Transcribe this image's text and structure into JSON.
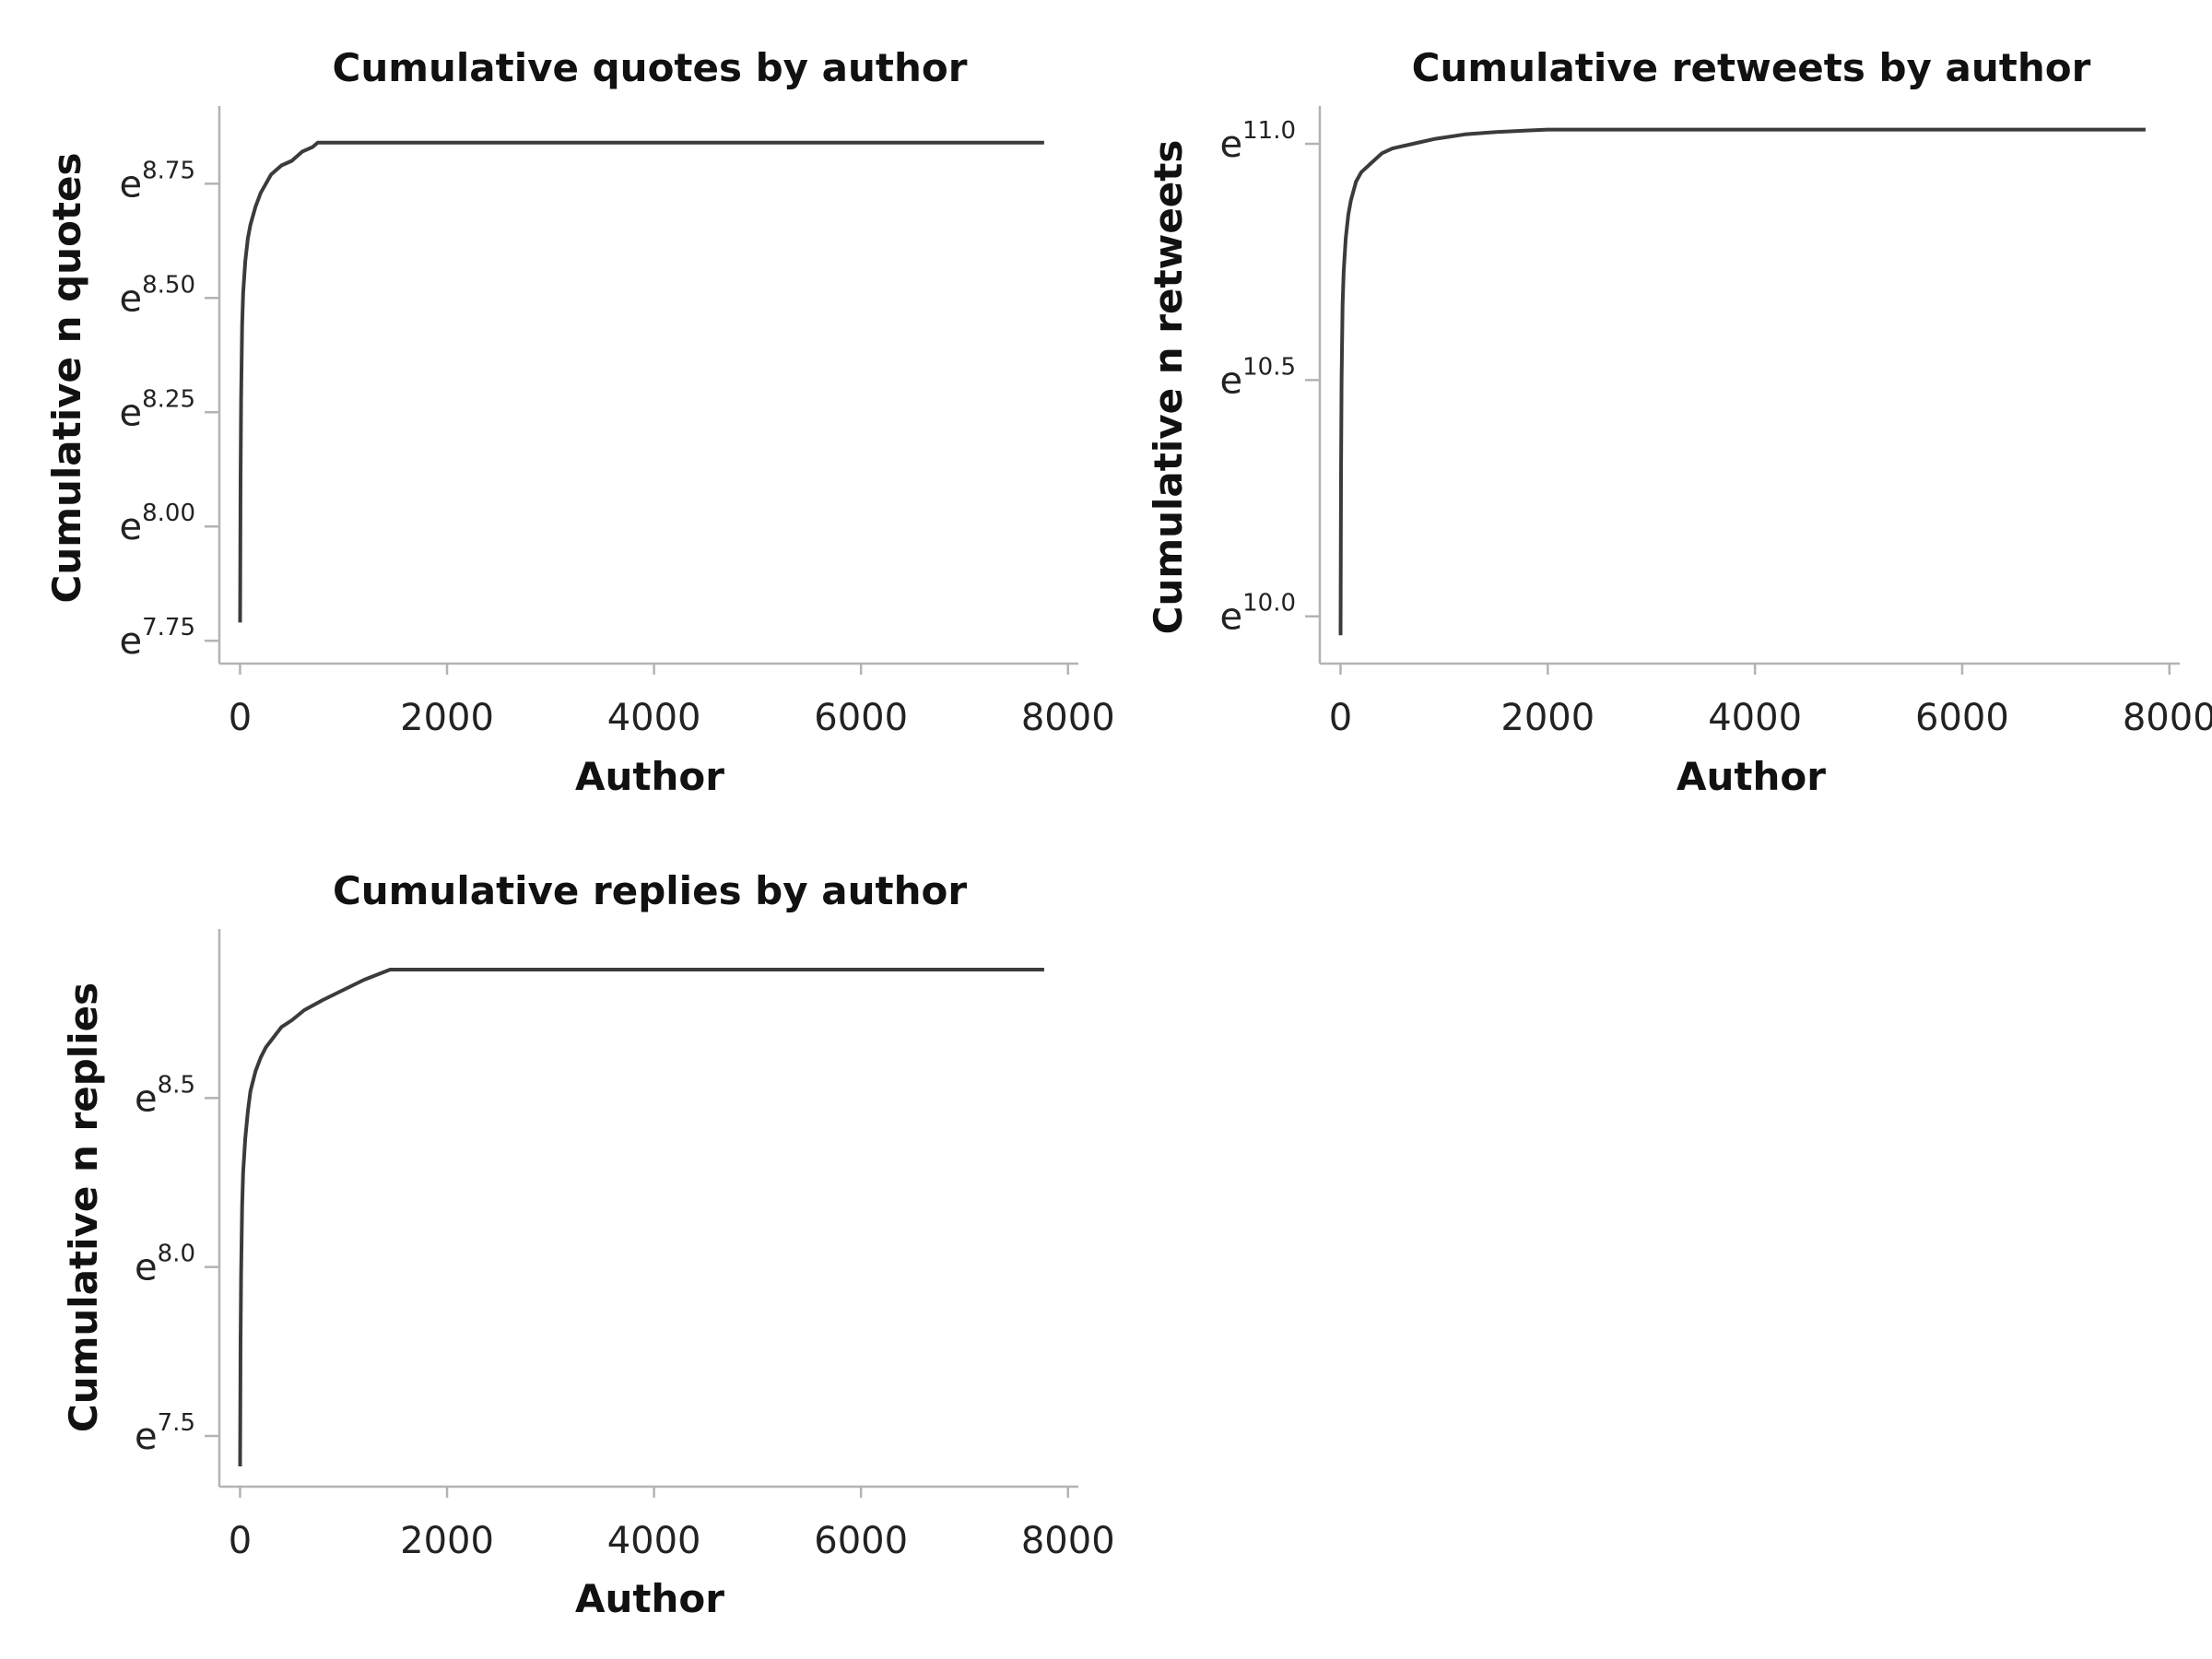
{
  "chart_data": [
    {
      "type": "line",
      "title": "Cumulative quotes by author",
      "xlabel": "Author",
      "ylabel": "Cumulative n quotes",
      "y_scale": "log (natural)",
      "xlim": [
        -200,
        8100
      ],
      "ylim_exponent": [
        7.7,
        8.92
      ],
      "x_ticks": [
        0,
        2000,
        4000,
        6000,
        8000
      ],
      "x_tick_labels": [
        "0",
        "2000",
        "4000",
        "6000",
        "8000"
      ],
      "y_tick_exponents": [
        7.75,
        8.0,
        8.25,
        8.5,
        8.75
      ],
      "y_tick_base": "e",
      "y_tick_exp_labels": [
        "7.75",
        "8.00",
        "8.25",
        "8.50",
        "8.75"
      ],
      "grid": false,
      "series": [
        {
          "x": [
            0,
            5,
            10,
            20,
            30,
            50,
            75,
            100,
            150,
            200,
            250,
            300,
            350,
            400,
            500,
            600,
            700,
            750,
            7770
          ],
          "y_exponent": [
            7.79,
            8.1,
            8.28,
            8.44,
            8.51,
            8.58,
            8.63,
            8.66,
            8.7,
            8.73,
            8.75,
            8.77,
            8.78,
            8.79,
            8.8,
            8.82,
            8.83,
            8.84,
            8.84
          ]
        }
      ]
    },
    {
      "type": "line",
      "title": "Cumulative retweets by author",
      "xlabel": "Author",
      "ylabel": "Cumulative n retweets",
      "y_scale": "log (natural)",
      "xlim": [
        -200,
        8100
      ],
      "ylim_exponent": [
        9.9,
        11.08
      ],
      "x_ticks": [
        0,
        2000,
        4000,
        6000,
        8000
      ],
      "x_tick_labels": [
        "0",
        "2000",
        "4000",
        "6000",
        "8000"
      ],
      "y_tick_exponents": [
        10.0,
        10.5,
        11.0
      ],
      "y_tick_base": "e",
      "y_tick_exp_labels": [
        "10.0",
        "10.5",
        "11.0"
      ],
      "grid": false,
      "series": [
        {
          "x": [
            0,
            5,
            10,
            20,
            30,
            50,
            75,
            100,
            150,
            200,
            300,
            400,
            500,
            700,
            900,
            1200,
            1500,
            2000,
            7770
          ],
          "y_exponent": [
            9.96,
            10.3,
            10.5,
            10.66,
            10.73,
            10.8,
            10.85,
            10.88,
            10.92,
            10.94,
            10.96,
            10.98,
            10.99,
            11.0,
            11.01,
            11.02,
            11.025,
            11.03,
            11.03
          ]
        }
      ]
    },
    {
      "type": "line",
      "title": "Cumulative replies by author",
      "xlabel": "Author",
      "ylabel": "Cumulative n replies",
      "y_scale": "log (natural)",
      "xlim": [
        -200,
        8100
      ],
      "ylim_exponent": [
        7.35,
        9.0
      ],
      "x_ticks": [
        0,
        2000,
        4000,
        6000,
        8000
      ],
      "x_tick_labels": [
        "0",
        "2000",
        "4000",
        "6000",
        "8000"
      ],
      "y_tick_exponents": [
        7.5,
        8.0,
        8.5
      ],
      "y_tick_base": "e",
      "y_tick_exp_labels": [
        "7.5",
        "8.0",
        "8.5"
      ],
      "grid": false,
      "series": [
        {
          "x": [
            0,
            5,
            10,
            20,
            30,
            50,
            75,
            100,
            150,
            200,
            250,
            300,
            400,
            500,
            620,
            800,
            1000,
            1200,
            1450,
            7770
          ],
          "y_exponent": [
            7.41,
            7.78,
            7.98,
            8.18,
            8.28,
            8.38,
            8.46,
            8.52,
            8.58,
            8.62,
            8.65,
            8.67,
            8.71,
            8.73,
            8.76,
            8.79,
            8.82,
            8.85,
            8.88,
            8.88
          ]
        }
      ]
    }
  ]
}
